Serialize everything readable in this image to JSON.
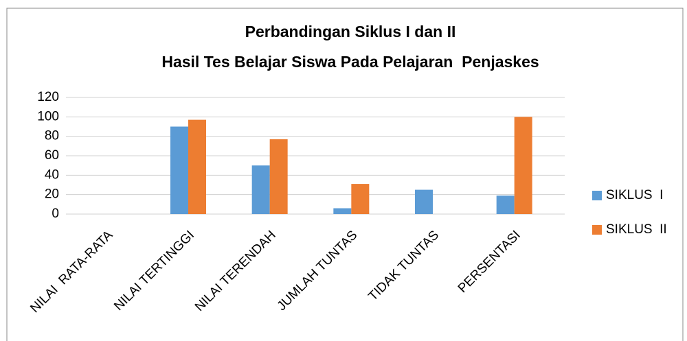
{
  "chart_data": {
    "type": "bar",
    "title": [
      "Perbandingan Siklus I dan II",
      "Hasil Tes Belajar Siswa Pada Pelajaran  Penjaskes"
    ],
    "categories": [
      "NILAI  RATA-RATA",
      "NILAI TERTINGGI",
      "NILAI TERENDAH",
      "JUMLAH TUNTAS",
      "TIDAK TUNTAS",
      "PERSENTASI"
    ],
    "series": [
      {
        "name": "SIKLUS  I",
        "color": "#5b9bd5",
        "values": [
          0,
          90,
          50,
          6,
          25,
          19
        ]
      },
      {
        "name": "SIKLUS  II",
        "color": "#ed7d31",
        "values": [
          0,
          97,
          77,
          31,
          0,
          100
        ]
      }
    ],
    "ylim": [
      0,
      120
    ],
    "yticks": [
      0,
      20,
      40,
      60,
      80,
      100,
      120
    ],
    "grid": true,
    "legend": "right"
  }
}
